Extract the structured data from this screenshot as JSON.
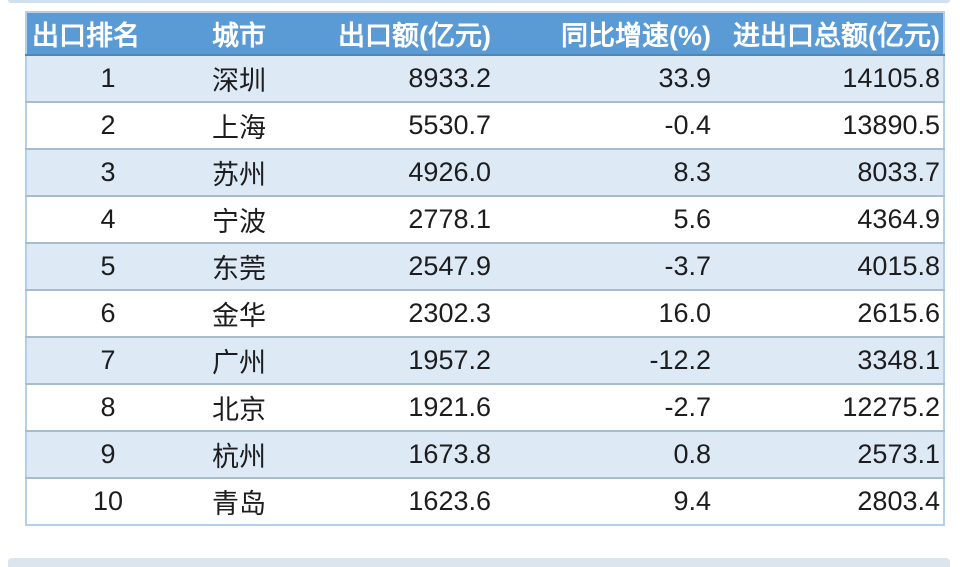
{
  "table": {
    "columns": [
      {
        "label": "出口排名"
      },
      {
        "label": "城市"
      },
      {
        "label": "出口额(亿元)"
      },
      {
        "label": "同比增速(%)"
      },
      {
        "label": "进出口总额(亿元)"
      }
    ],
    "rows": [
      [
        "1",
        "深圳",
        "8933.2",
        "33.9",
        "14105.8"
      ],
      [
        "2",
        "上海",
        "5530.7",
        "-0.4",
        "13890.5"
      ],
      [
        "3",
        "苏州",
        "4926.0",
        "8.3",
        "8033.7"
      ],
      [
        "4",
        "宁波",
        "2778.1",
        "5.6",
        "4364.9"
      ],
      [
        "5",
        "东莞",
        "2547.9",
        "-3.7",
        "4015.8"
      ],
      [
        "6",
        "金华",
        "2302.3",
        "16.0",
        "2615.6"
      ],
      [
        "7",
        "广州",
        "1957.2",
        "-12.2",
        "3348.1"
      ],
      [
        "8",
        "北京",
        "1921.6",
        "-2.7",
        "12275.2"
      ],
      [
        "9",
        "杭州",
        "1673.8",
        "0.8",
        "2573.1"
      ],
      [
        "10",
        "青岛",
        "1623.6",
        "9.4",
        "2803.4"
      ]
    ]
  },
  "colors": {
    "header_bg": "#5b9bd5",
    "header_text": "#ffffff",
    "header_border_bottom": "#4e86b6",
    "row_alt_bg": "#dde9f5",
    "row_bg": "#ffffff",
    "row_separator": "#a9bccb",
    "table_border": "#b2d0ea",
    "cell_text": "#1d1d1f",
    "page_bg": "#ffffff",
    "edge_strip_top": "#cfe0ef",
    "edge_strip_bottom": "#dce5ee"
  },
  "chart_data": {
    "type": "table",
    "columns": [
      "出口排名",
      "城市",
      "出口额(亿元)",
      "同比增速(%)",
      "进出口总额(亿元)"
    ],
    "rows": [
      [
        1,
        "深圳",
        8933.2,
        33.9,
        14105.8
      ],
      [
        2,
        "上海",
        5530.7,
        -0.4,
        13890.5
      ],
      [
        3,
        "苏州",
        4926.0,
        8.3,
        8033.7
      ],
      [
        4,
        "宁波",
        2778.1,
        5.6,
        4364.9
      ],
      [
        5,
        "东莞",
        2547.9,
        -3.7,
        4015.8
      ],
      [
        6,
        "金华",
        2302.3,
        16.0,
        2615.6
      ],
      [
        7,
        "广州",
        1957.2,
        -12.2,
        3348.1
      ],
      [
        8,
        "北京",
        1921.6,
        -2.7,
        12275.2
      ],
      [
        9,
        "杭州",
        1673.8,
        0.8,
        2573.1
      ],
      [
        10,
        "青岛",
        1623.6,
        9.4,
        2803.4
      ]
    ],
    "notes": "Top 10 Chinese cities by export value; alternating-row data table, no axes or legend"
  }
}
